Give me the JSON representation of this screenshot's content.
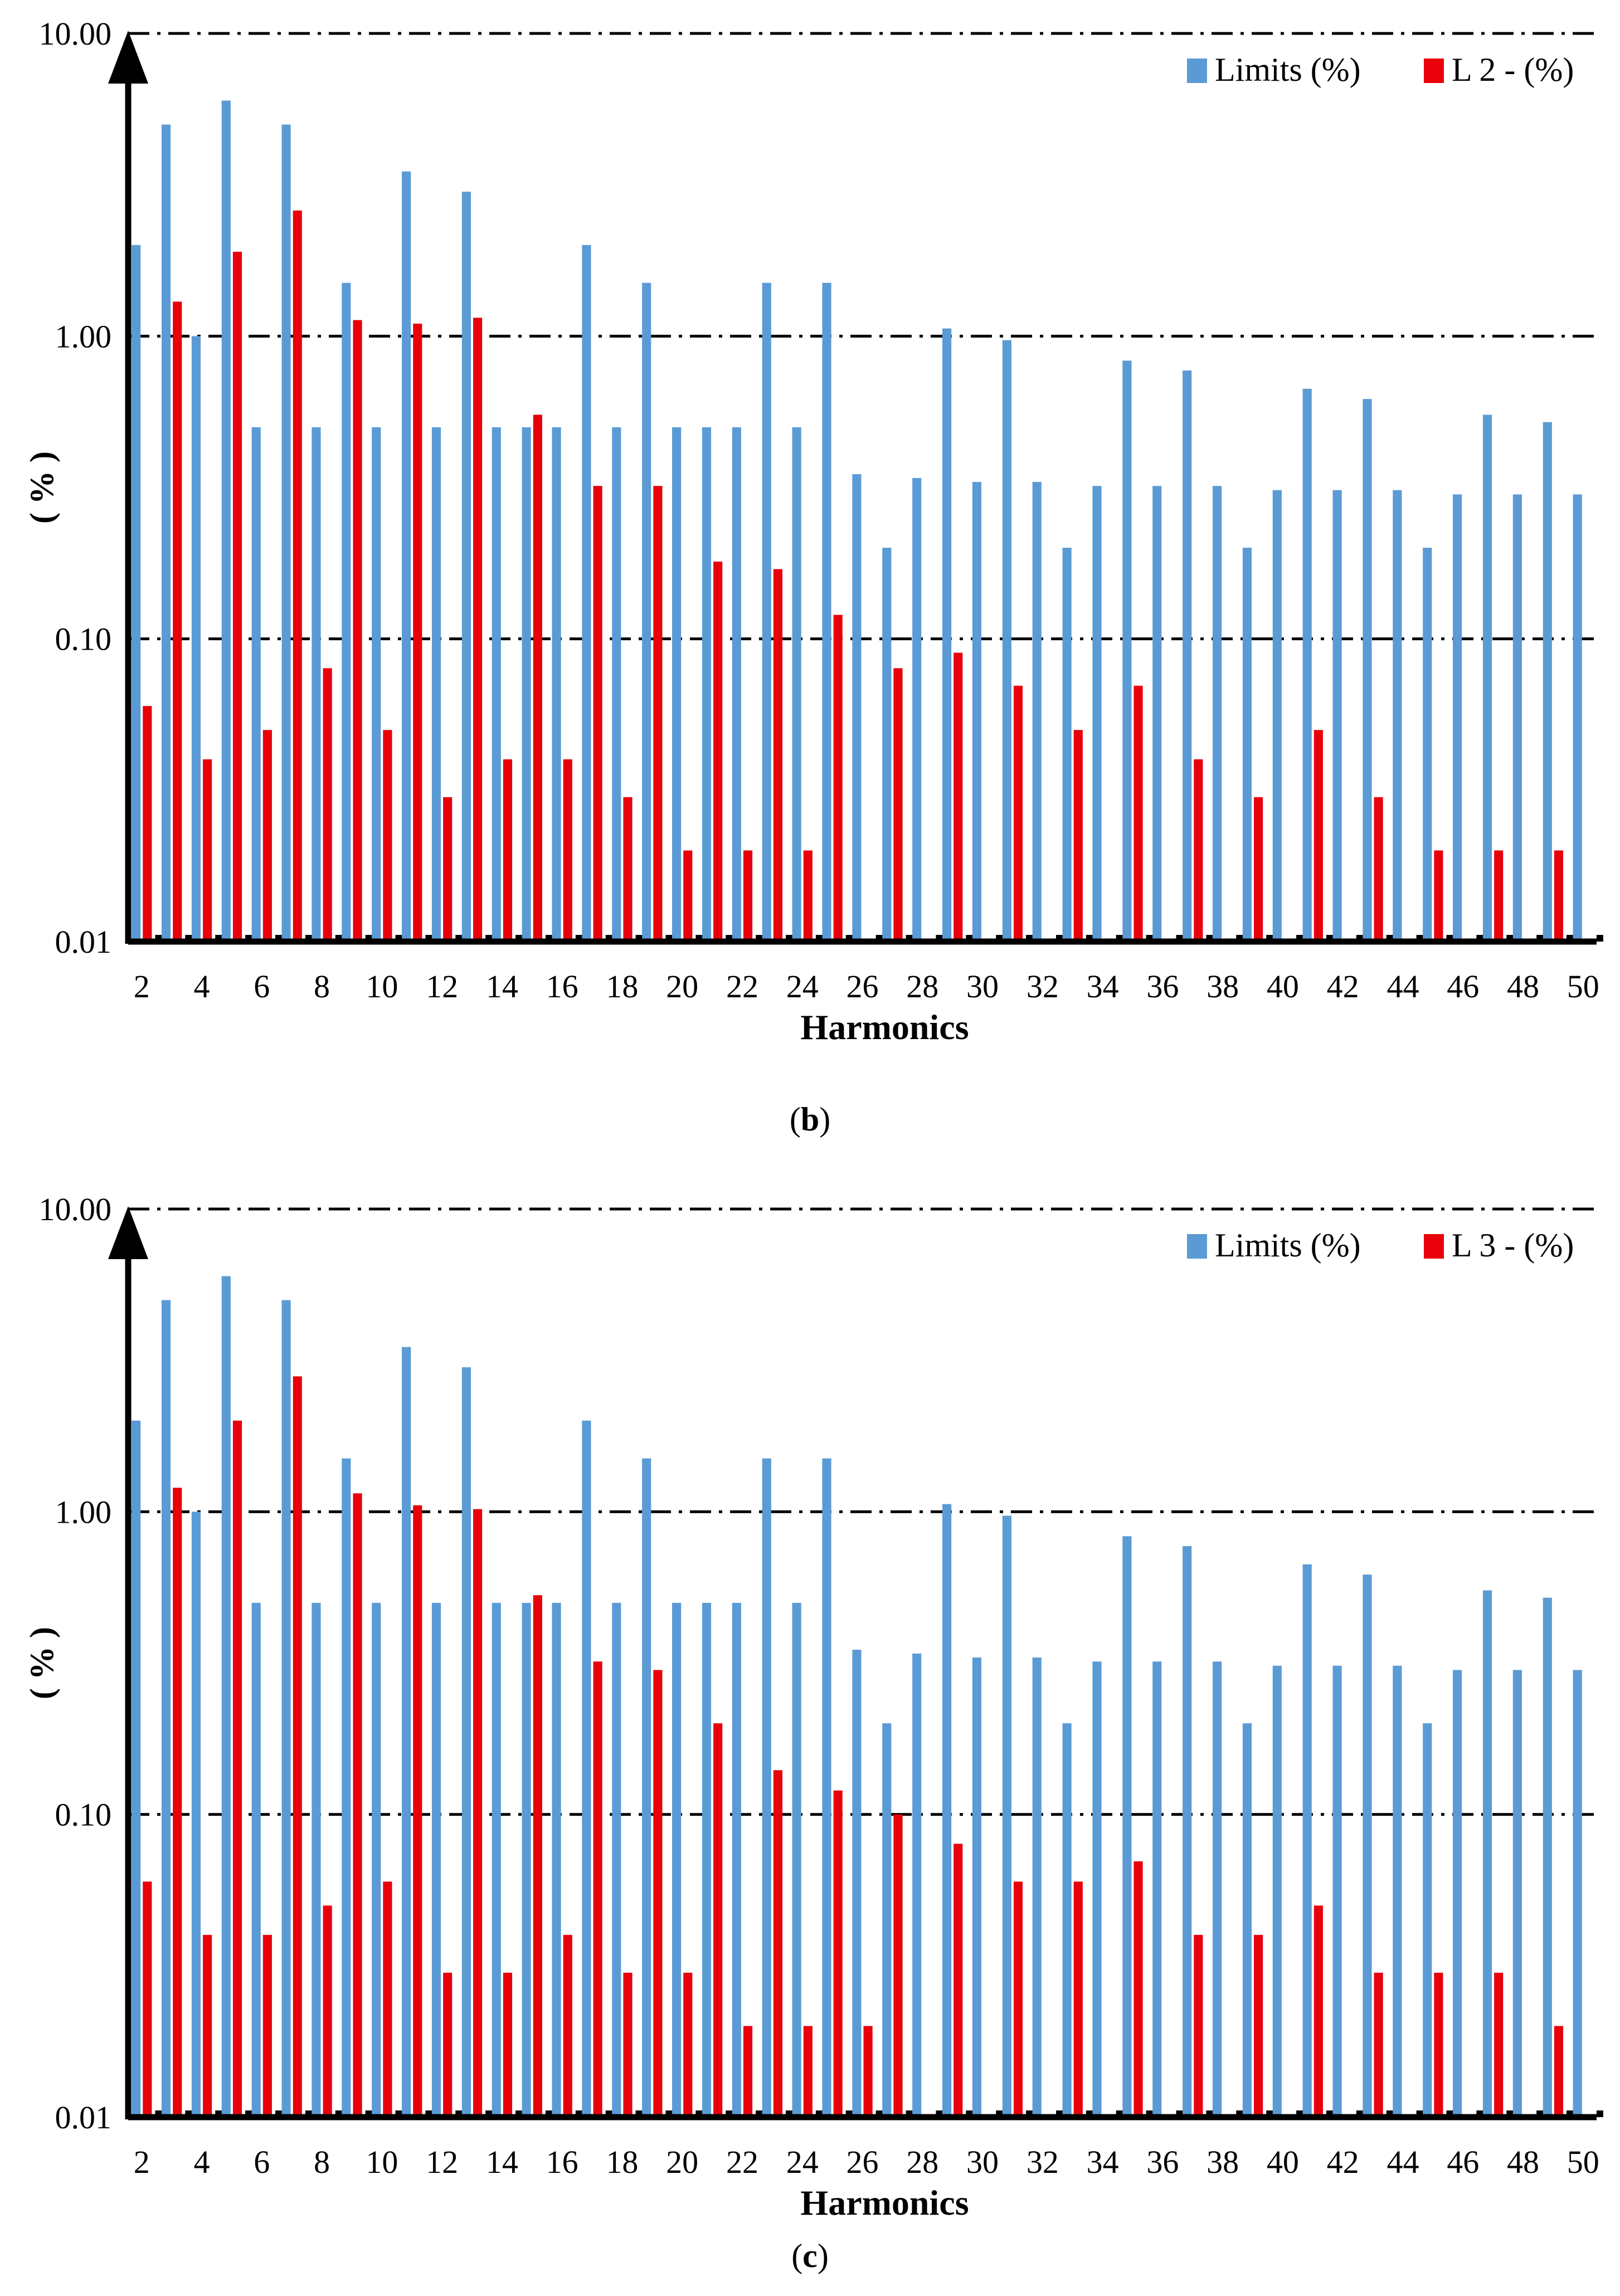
{
  "chart_data": [
    {
      "id": "b",
      "type": "bar",
      "yscale": "log",
      "ylim": [
        0.01,
        10
      ],
      "yticks": [
        "0.01",
        "0.10",
        "1.00",
        "10.00"
      ],
      "ylabel": "( % )",
      "xlabel": "Harmonics",
      "x_tick_labels": [
        "2",
        "4",
        "6",
        "8",
        "10",
        "12",
        "14",
        "16",
        "18",
        "20",
        "22",
        "24",
        "26",
        "28",
        "30",
        "32",
        "34",
        "36",
        "38",
        "40",
        "42",
        "44",
        "46",
        "48",
        "50"
      ],
      "caption_letter": "b",
      "legend": [
        "Limits (%)",
        "L 2 - (%)"
      ],
      "colors": {
        "limits": "#5b9bd5",
        "measured": "#e8000b"
      },
      "harmonics": [
        2,
        3,
        4,
        5,
        6,
        7,
        8,
        9,
        10,
        11,
        12,
        13,
        14,
        15,
        16,
        17,
        18,
        19,
        20,
        21,
        22,
        23,
        24,
        25,
        26,
        27,
        28,
        29,
        30,
        31,
        32,
        33,
        34,
        35,
        36,
        37,
        38,
        39,
        40,
        41,
        42,
        43,
        44,
        45,
        46,
        47,
        48,
        49,
        50
      ],
      "series": [
        {
          "name": "Limits (%)",
          "values": [
            2,
            5,
            1,
            6,
            0.5,
            5,
            0.5,
            1.5,
            0.5,
            3.5,
            0.5,
            3,
            0.5,
            0.5,
            0.5,
            2,
            0.5,
            1.5,
            0.5,
            0.5,
            0.5,
            1.5,
            0.5,
            1.5,
            0.35,
            0.2,
            0.34,
            1.06,
            0.33,
            0.97,
            0.33,
            0.2,
            0.32,
            0.83,
            0.32,
            0.77,
            0.32,
            0.2,
            0.31,
            0.67,
            0.31,
            0.62,
            0.31,
            0.2,
            0.3,
            0.55,
            0.3,
            0.52,
            0.3
          ]
        },
        {
          "name": "L 2 - (%)",
          "values": [
            0.06,
            1.3,
            0.04,
            1.9,
            0.05,
            2.6,
            0.08,
            1.13,
            0.05,
            1.1,
            0.03,
            1.15,
            0.04,
            0.55,
            0.04,
            0.32,
            0.03,
            0.32,
            0.02,
            0.18,
            0.02,
            0.17,
            0.02,
            0.12,
            null,
            0.08,
            null,
            0.09,
            null,
            0.07,
            null,
            0.05,
            null,
            0.07,
            null,
            0.04,
            null,
            0.03,
            null,
            0.05,
            null,
            0.03,
            null,
            0.02,
            null,
            0.02,
            null,
            0.02,
            null
          ]
        }
      ]
    },
    {
      "id": "c",
      "type": "bar",
      "yscale": "log",
      "ylim": [
        0.01,
        10
      ],
      "yticks": [
        "0.01",
        "0.10",
        "1.00",
        "10.00"
      ],
      "ylabel": "( % )",
      "xlabel": "Harmonics",
      "x_tick_labels": [
        "2",
        "4",
        "6",
        "8",
        "10",
        "12",
        "14",
        "16",
        "18",
        "20",
        "22",
        "24",
        "26",
        "28",
        "30",
        "32",
        "34",
        "36",
        "38",
        "40",
        "42",
        "44",
        "46",
        "48",
        "50"
      ],
      "caption_letter": "c",
      "legend": [
        "Limits (%)",
        "L 3 - (%)"
      ],
      "colors": {
        "limits": "#5b9bd5",
        "measured": "#e8000b"
      },
      "harmonics": [
        2,
        3,
        4,
        5,
        6,
        7,
        8,
        9,
        10,
        11,
        12,
        13,
        14,
        15,
        16,
        17,
        18,
        19,
        20,
        21,
        22,
        23,
        24,
        25,
        26,
        27,
        28,
        29,
        30,
        31,
        32,
        33,
        34,
        35,
        36,
        37,
        38,
        39,
        40,
        41,
        42,
        43,
        44,
        45,
        46,
        47,
        48,
        49,
        50
      ],
      "series": [
        {
          "name": "Limits (%)",
          "values": [
            2,
            5,
            1,
            6,
            0.5,
            5,
            0.5,
            1.5,
            0.5,
            3.5,
            0.5,
            3,
            0.5,
            0.5,
            0.5,
            2,
            0.5,
            1.5,
            0.5,
            0.5,
            0.5,
            1.5,
            0.5,
            1.5,
            0.35,
            0.2,
            0.34,
            1.06,
            0.33,
            0.97,
            0.33,
            0.2,
            0.32,
            0.83,
            0.32,
            0.77,
            0.32,
            0.2,
            0.31,
            0.67,
            0.31,
            0.62,
            0.31,
            0.2,
            0.3,
            0.55,
            0.3,
            0.52,
            0.3
          ]
        },
        {
          "name": "L 3 - (%)",
          "values": [
            0.06,
            1.2,
            0.04,
            2,
            0.04,
            2.8,
            0.05,
            1.15,
            0.06,
            1.05,
            0.03,
            1.02,
            0.03,
            0.53,
            0.04,
            0.32,
            0.03,
            0.3,
            0.03,
            0.2,
            0.02,
            0.14,
            0.02,
            0.12,
            0.02,
            0.1,
            null,
            0.08,
            null,
            0.06,
            null,
            0.06,
            null,
            0.07,
            null,
            0.04,
            null,
            0.04,
            null,
            0.05,
            null,
            0.03,
            null,
            0.03,
            null,
            0.03,
            null,
            0.02,
            null
          ]
        }
      ]
    }
  ]
}
